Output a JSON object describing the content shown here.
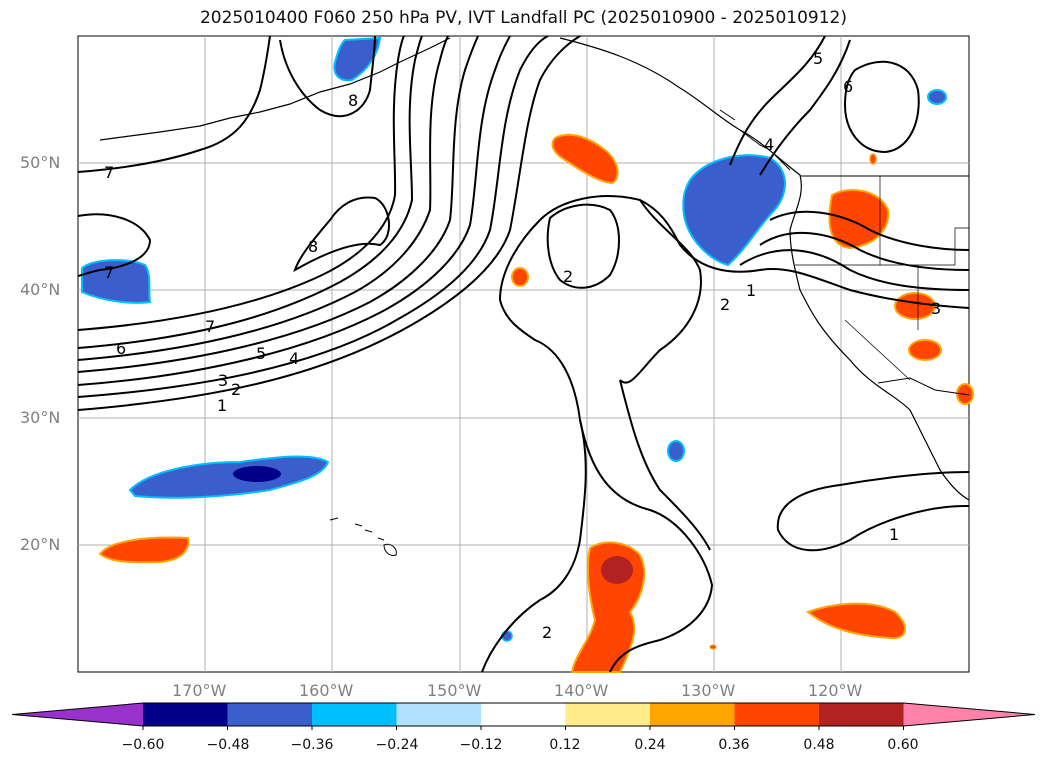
{
  "title": "2025010400 F060 250 hPa PV, IVT Landfall PC (2025010900 - 2025010912)",
  "lat_labels": [
    "50°N",
    "40°N",
    "30°N",
    "20°N"
  ],
  "lon_labels": [
    "170°W",
    "160°W",
    "150°W",
    "140°W",
    "130°W",
    "120°W"
  ],
  "contour_labels": [
    "7",
    "7",
    "8",
    "8",
    "7",
    "6",
    "5",
    "4",
    "3",
    "2",
    "1",
    "2",
    "1",
    "4",
    "5",
    "6",
    "3",
    "2",
    "1",
    "2"
  ],
  "colorbar": {
    "ticks": [
      "−0.60",
      "−0.48",
      "−0.36",
      "−0.24",
      "−0.12",
      "0.12",
      "0.24",
      "0.36",
      "0.48",
      "0.60"
    ],
    "colors": [
      "#9932cc",
      "#00008b",
      "#3a5fcd",
      "#00bfff",
      "#b0e2ff",
      "#ffffff",
      "#ffec8b",
      "#ffa500",
      "#ff4500",
      "#b22222",
      "#ff82ab"
    ]
  }
}
